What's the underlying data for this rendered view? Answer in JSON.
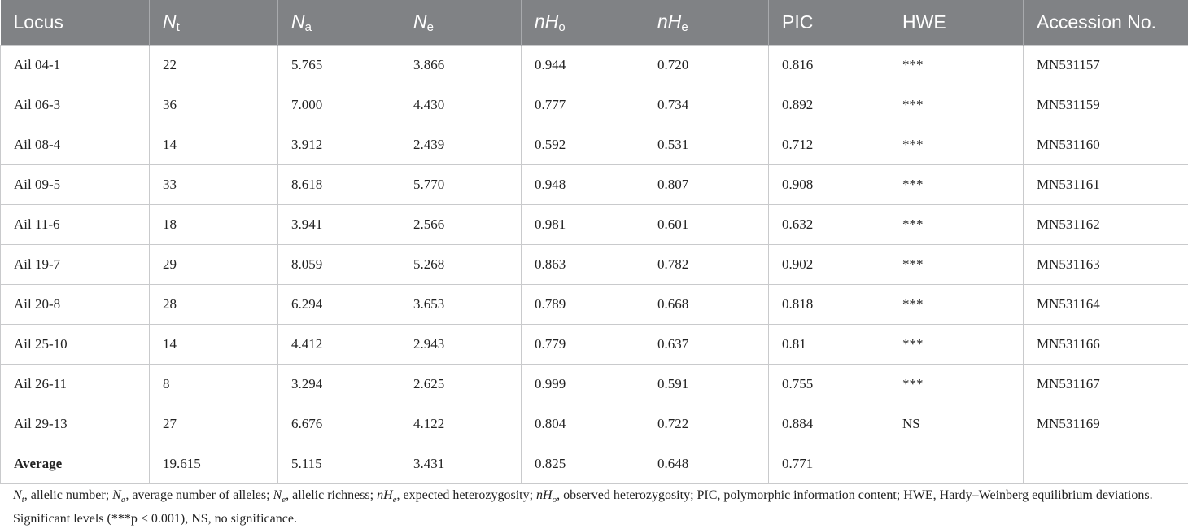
{
  "table": {
    "headers": [
      {
        "main": "Locus",
        "sub": "",
        "italic": false
      },
      {
        "main": "N",
        "sub": "t",
        "italic": true
      },
      {
        "main": "N",
        "sub": "a",
        "italic": true
      },
      {
        "main": "N",
        "sub": "e",
        "italic": true
      },
      {
        "main": "nH",
        "sub": "o",
        "italic": true
      },
      {
        "main": "nH",
        "sub": "e",
        "italic": true
      },
      {
        "main": "PIC",
        "sub": "",
        "italic": false
      },
      {
        "main": "HWE",
        "sub": "",
        "italic": false
      },
      {
        "main": "Accession No.",
        "sub": "",
        "italic": false
      }
    ],
    "rows": [
      [
        "Ail 04-1",
        "22",
        "5.765",
        "3.866",
        "0.944",
        "0.720",
        "0.816",
        "***",
        "MN531157"
      ],
      [
        "Ail 06-3",
        "36",
        "7.000",
        "4.430",
        "0.777",
        "0.734",
        "0.892",
        "***",
        "MN531159"
      ],
      [
        "Ail 08-4",
        "14",
        "3.912",
        "2.439",
        "0.592",
        "0.531",
        "0.712",
        "***",
        "MN531160"
      ],
      [
        "Ail 09-5",
        "33",
        "8.618",
        "5.770",
        "0.948",
        "0.807",
        "0.908",
        "***",
        "MN531161"
      ],
      [
        "Ail 11-6",
        "18",
        "3.941",
        "2.566",
        "0.981",
        "0.601",
        "0.632",
        "***",
        "MN531162"
      ],
      [
        "Ail 19-7",
        "29",
        "8.059",
        "5.268",
        "0.863",
        "0.782",
        "0.902",
        "***",
        "MN531163"
      ],
      [
        "Ail 20-8",
        "28",
        "6.294",
        "3.653",
        "0.789",
        "0.668",
        "0.818",
        "***",
        "MN531164"
      ],
      [
        "Ail 25-10",
        "14",
        "4.412",
        "2.943",
        "0.779",
        "0.637",
        "0.81",
        "***",
        "MN531166"
      ],
      [
        "Ail 26-11",
        "8",
        "3.294",
        "2.625",
        "0.999",
        "0.591",
        "0.755",
        "***",
        "MN531167"
      ],
      [
        "Ail 29-13",
        "27",
        "6.676",
        "4.122",
        "0.804",
        "0.722",
        "0.884",
        "NS",
        "MN531169"
      ]
    ],
    "average": [
      "Average",
      "19.615",
      "5.115",
      "3.431",
      "0.825",
      "0.648",
      "0.771",
      "",
      ""
    ]
  },
  "footnote": {
    "parts": [
      {
        "t": "N",
        "i": true
      },
      {
        "t": "t",
        "sub": true,
        "i": true
      },
      {
        "t": ", allelic number; "
      },
      {
        "t": "N",
        "i": true
      },
      {
        "t": "a",
        "sub": true,
        "i": true
      },
      {
        "t": ", average number of alleles; "
      },
      {
        "t": "N",
        "i": true
      },
      {
        "t": "e",
        "sub": true,
        "i": true
      },
      {
        "t": ", allelic richness; "
      },
      {
        "t": "nH",
        "i": true
      },
      {
        "t": "e",
        "sub": true,
        "i": true
      },
      {
        "t": ", expected heterozygosity; "
      },
      {
        "t": "nH",
        "i": true
      },
      {
        "t": "o",
        "sub": true,
        "i": true
      },
      {
        "t": ", observed heterozygosity; PIC, polymorphic information content; HWE, Hardy–Weinberg equilibrium deviations. Significant levels (***p < 0.001), NS, no significance."
      }
    ]
  }
}
